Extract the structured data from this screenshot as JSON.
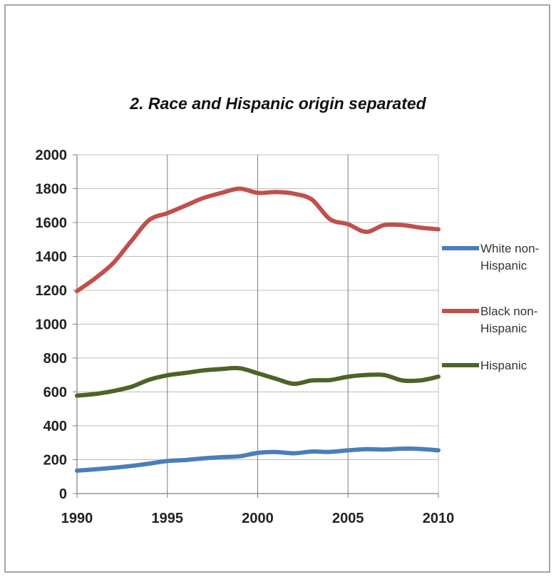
{
  "chart_data": {
    "type": "line",
    "title": "2. Race and Hispanic origin separated",
    "xlabel": "",
    "ylabel": "",
    "xlim": [
      1990,
      2010
    ],
    "ylim": [
      0,
      2000
    ],
    "x_ticks": [
      1990,
      1995,
      2000,
      2005,
      2010
    ],
    "y_ticks": [
      0,
      200,
      400,
      600,
      800,
      1000,
      1200,
      1400,
      1600,
      1800,
      2000
    ],
    "grid": true,
    "legend_position": "right",
    "x": [
      1990,
      1991,
      1992,
      1993,
      1994,
      1995,
      1996,
      1997,
      1998,
      1999,
      2000,
      2001,
      2002,
      2003,
      2004,
      2005,
      2006,
      2007,
      2008,
      2009,
      2010
    ],
    "series": [
      {
        "name": "White non-Hispanic",
        "color": "#4a7ebb",
        "values": [
          135,
          143,
          152,
          163,
          177,
          192,
          198,
          208,
          215,
          220,
          240,
          245,
          238,
          248,
          246,
          255,
          262,
          260,
          265,
          263,
          255
        ]
      },
      {
        "name": "Black non-Hispanic",
        "color": "#c0504d",
        "values": [
          1195,
          1270,
          1360,
          1490,
          1615,
          1655,
          1700,
          1745,
          1775,
          1800,
          1775,
          1780,
          1770,
          1735,
          1620,
          1590,
          1545,
          1585,
          1585,
          1570,
          1560
        ]
      },
      {
        "name": "Hispanic",
        "color": "#4f6228",
        "values": [
          578,
          588,
          605,
          630,
          672,
          698,
          712,
          727,
          735,
          740,
          710,
          678,
          648,
          668,
          670,
          690,
          700,
          700,
          668,
          668,
          690
        ]
      }
    ]
  }
}
